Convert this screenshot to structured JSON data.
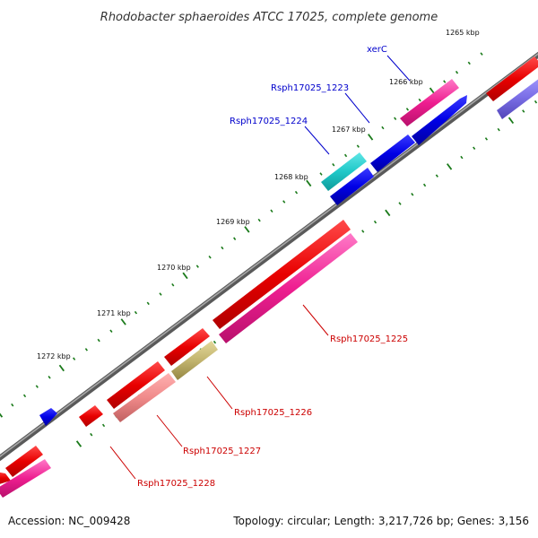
{
  "title": "Rhodobacter sphaeroides ATCC 17025, complete genome",
  "footer": {
    "accession": "Accession: NC_009428",
    "summary": "Topology: circular; Length: 3,217,726 bp; Genes: 3,156"
  },
  "colors": {
    "backbone": "#808080",
    "tick": "#1a7a1a",
    "label_blue": "#0000cc",
    "label_red": "#cc0000"
  },
  "ticks": [
    {
      "label": "1265 kbp"
    },
    {
      "label": "1266 kbp"
    },
    {
      "label": "1267 kbp"
    },
    {
      "label": "1268 kbp"
    },
    {
      "label": "1269 kbp"
    },
    {
      "label": "1270 kbp"
    },
    {
      "label": "1271 kbp"
    },
    {
      "label": "1272 kbp"
    }
  ],
  "gene_labels": [
    {
      "text": "xerC",
      "color": "#0000cc"
    },
    {
      "text": "Rsph17025_1223",
      "color": "#0000cc"
    },
    {
      "text": "Rsph17025_1224",
      "color": "#0000cc"
    },
    {
      "text": "Rsph17025_1225",
      "color": "#cc0000"
    },
    {
      "text": "Rsph17025_1226",
      "color": "#cc0000"
    },
    {
      "text": "Rsph17025_1227",
      "color": "#cc0000"
    },
    {
      "text": "Rsph17025_1228",
      "color": "#cc0000"
    }
  ]
}
